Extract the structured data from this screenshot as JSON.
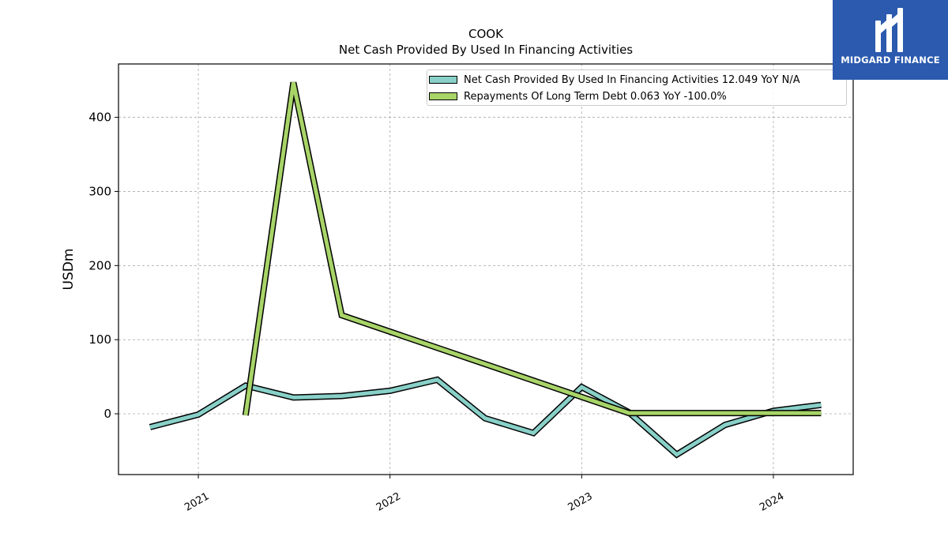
{
  "chart_data": {
    "type": "line",
    "title": "COOK",
    "subtitle": "Net Cash Provided By Used In Financing Activities",
    "ylabel": "USDm",
    "xlabel": "",
    "ylim": [
      -82,
      472
    ],
    "xlim": [
      "2020-08-02",
      "2024-06-01"
    ],
    "x_ticks": [
      {
        "date": "2021-01-01",
        "label": "2021"
      },
      {
        "date": "2022-01-01",
        "label": "2022"
      },
      {
        "date": "2023-01-01",
        "label": "2023"
      },
      {
        "date": "2024-01-01",
        "label": "2024"
      }
    ],
    "y_ticks": [
      0,
      100,
      200,
      300,
      400
    ],
    "grid": true,
    "legend_position": "top-right",
    "series": [
      {
        "name": "Net Cash Provided By Used In Financing Activities",
        "legend_label": "Net Cash Provided By Used In Financing Activities  12.049 YoY N/A",
        "color": "#88d0c8",
        "points": [
          {
            "x": "2020-10-01",
            "y": -18
          },
          {
            "x": "2021-01-01",
            "y": -1
          },
          {
            "x": "2021-04-01",
            "y": 38
          },
          {
            "x": "2021-07-01",
            "y": 22
          },
          {
            "x": "2021-10-01",
            "y": 24
          },
          {
            "x": "2022-01-01",
            "y": 31
          },
          {
            "x": "2022-04-01",
            "y": 46
          },
          {
            "x": "2022-07-01",
            "y": -6
          },
          {
            "x": "2022-10-01",
            "y": -26
          },
          {
            "x": "2023-01-01",
            "y": 36
          },
          {
            "x": "2023-04-01",
            "y": 2
          },
          {
            "x": "2023-07-01",
            "y": -55
          },
          {
            "x": "2023-10-01",
            "y": -15
          },
          {
            "x": "2024-01-01",
            "y": 4
          },
          {
            "x": "2024-04-01",
            "y": 12
          }
        ]
      },
      {
        "name": "Repayments Of Long Term Debt",
        "legend_label": "Repayments Of Long Term Debt  0.063 YoY -100.0%",
        "color": "#a8d468",
        "points": [
          {
            "x": "2021-04-01",
            "y": -2
          },
          {
            "x": "2021-07-01",
            "y": 447
          },
          {
            "x": "2021-10-01",
            "y": 133
          },
          {
            "x": "2023-04-01",
            "y": 1
          },
          {
            "x": "2023-07-01",
            "y": 1
          },
          {
            "x": "2023-10-01",
            "y": 1
          },
          {
            "x": "2024-01-01",
            "y": 1
          },
          {
            "x": "2024-04-01",
            "y": 1
          }
        ]
      }
    ]
  },
  "logo": {
    "text": "MIDGARD FINANCE",
    "background": "#2b5aae"
  }
}
